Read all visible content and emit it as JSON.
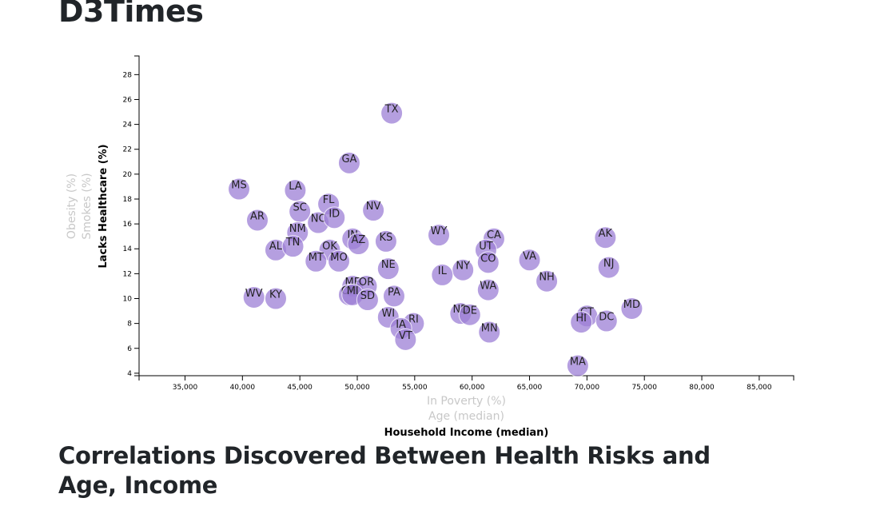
{
  "page": {
    "title": "D3Times",
    "heading": "Correlations Discovered Between Health Risks and Age, Income"
  },
  "chart_data": {
    "type": "scatter",
    "x_axis": {
      "labels": [
        {
          "text": "In Poverty (%)",
          "active": false
        },
        {
          "text": "Age (median)",
          "active": false
        },
        {
          "text": "Household Income (median)",
          "active": true
        }
      ],
      "range": [
        31000,
        88000
      ],
      "ticks": [
        35000,
        40000,
        45000,
        50000,
        55000,
        60000,
        65000,
        70000,
        75000,
        80000,
        85000
      ],
      "tick_labels": [
        "35,000",
        "40,000",
        "45,000",
        "50,000",
        "55,000",
        "60,000",
        "65,000",
        "70,000",
        "75,000",
        "80,000",
        "85,000"
      ]
    },
    "y_axis": {
      "labels": [
        {
          "text": "Obesity (%)",
          "active": false
        },
        {
          "text": "Smokes (%)",
          "active": false
        },
        {
          "text": "Lacks Healthcare (%)",
          "active": true
        }
      ],
      "range": [
        3.8,
        29.5
      ],
      "ticks": [
        4,
        6,
        8,
        10,
        12,
        14,
        16,
        18,
        20,
        22,
        24,
        26,
        28
      ],
      "tick_labels": [
        "4",
        "6",
        "8",
        "10",
        "12",
        "14",
        "16",
        "18",
        "20",
        "22",
        "24",
        "26",
        "28"
      ]
    },
    "colors": {
      "circle": "#9d7fd6"
    },
    "points": [
      {
        "abbr": "TX",
        "x": 53000,
        "y": 24.9
      },
      {
        "abbr": "GA",
        "x": 49300,
        "y": 20.9
      },
      {
        "abbr": "MS",
        "x": 39700,
        "y": 18.8
      },
      {
        "abbr": "LA",
        "x": 44600,
        "y": 18.7
      },
      {
        "abbr": "FL",
        "x": 47500,
        "y": 17.6
      },
      {
        "abbr": "SC",
        "x": 45000,
        "y": 17.0
      },
      {
        "abbr": "NV",
        "x": 51400,
        "y": 17.1
      },
      {
        "abbr": "NC",
        "x": 46600,
        "y": 16.1
      },
      {
        "abbr": "ID",
        "x": 48000,
        "y": 16.5
      },
      {
        "abbr": "AR",
        "x": 41300,
        "y": 16.3
      },
      {
        "abbr": "NM",
        "x": 44800,
        "y": 15.3
      },
      {
        "abbr": "IN",
        "x": 49600,
        "y": 14.8
      },
      {
        "abbr": "AZ",
        "x": 50100,
        "y": 14.4
      },
      {
        "abbr": "KS",
        "x": 52500,
        "y": 14.6
      },
      {
        "abbr": "WY",
        "x": 57100,
        "y": 15.1
      },
      {
        "abbr": "CA",
        "x": 61900,
        "y": 14.8
      },
      {
        "abbr": "AK",
        "x": 71600,
        "y": 14.9
      },
      {
        "abbr": "AL",
        "x": 42900,
        "y": 13.9
      },
      {
        "abbr": "TN",
        "x": 44400,
        "y": 14.2
      },
      {
        "abbr": "OK",
        "x": 47600,
        "y": 13.9
      },
      {
        "abbr": "UT",
        "x": 61200,
        "y": 13.9
      },
      {
        "abbr": "MT",
        "x": 46400,
        "y": 13.0
      },
      {
        "abbr": "MO",
        "x": 48400,
        "y": 13.0
      },
      {
        "abbr": "VA",
        "x": 65000,
        "y": 13.1
      },
      {
        "abbr": "NJ",
        "x": 71900,
        "y": 12.5
      },
      {
        "abbr": "NE",
        "x": 52700,
        "y": 12.4
      },
      {
        "abbr": "CO",
        "x": 61400,
        "y": 12.9
      },
      {
        "abbr": "NY",
        "x": 59200,
        "y": 12.3
      },
      {
        "abbr": "IL",
        "x": 57400,
        "y": 11.9
      },
      {
        "abbr": "NH",
        "x": 66500,
        "y": 11.4
      },
      {
        "abbr": "ME",
        "x": 49600,
        "y": 11.0
      },
      {
        "abbr": "OR",
        "x": 50800,
        "y": 11.0
      },
      {
        "abbr": "WA",
        "x": 61400,
        "y": 10.7
      },
      {
        "abbr": "OH",
        "x": 49300,
        "y": 10.3
      },
      {
        "abbr": "MI",
        "x": 49600,
        "y": 10.3
      },
      {
        "abbr": "SD",
        "x": 50900,
        "y": 9.9
      },
      {
        "abbr": "PA",
        "x": 53200,
        "y": 10.2
      },
      {
        "abbr": "WV",
        "x": 41000,
        "y": 10.1
      },
      {
        "abbr": "KY",
        "x": 42900,
        "y": 10.0
      },
      {
        "abbr": "MD",
        "x": 73900,
        "y": 9.2
      },
      {
        "abbr": "ND",
        "x": 59000,
        "y": 8.8
      },
      {
        "abbr": "DE",
        "x": 59800,
        "y": 8.7
      },
      {
        "abbr": "CT",
        "x": 70000,
        "y": 8.6
      },
      {
        "abbr": "HI",
        "x": 69500,
        "y": 8.1
      },
      {
        "abbr": "DC",
        "x": 71700,
        "y": 8.2
      },
      {
        "abbr": "WI",
        "x": 52700,
        "y": 8.5
      },
      {
        "abbr": "RI",
        "x": 54900,
        "y": 8.0
      },
      {
        "abbr": "IA",
        "x": 53800,
        "y": 7.6
      },
      {
        "abbr": "MN",
        "x": 61500,
        "y": 7.3
      },
      {
        "abbr": "VT",
        "x": 54200,
        "y": 6.7
      },
      {
        "abbr": "MA",
        "x": 69200,
        "y": 4.6
      }
    ]
  }
}
